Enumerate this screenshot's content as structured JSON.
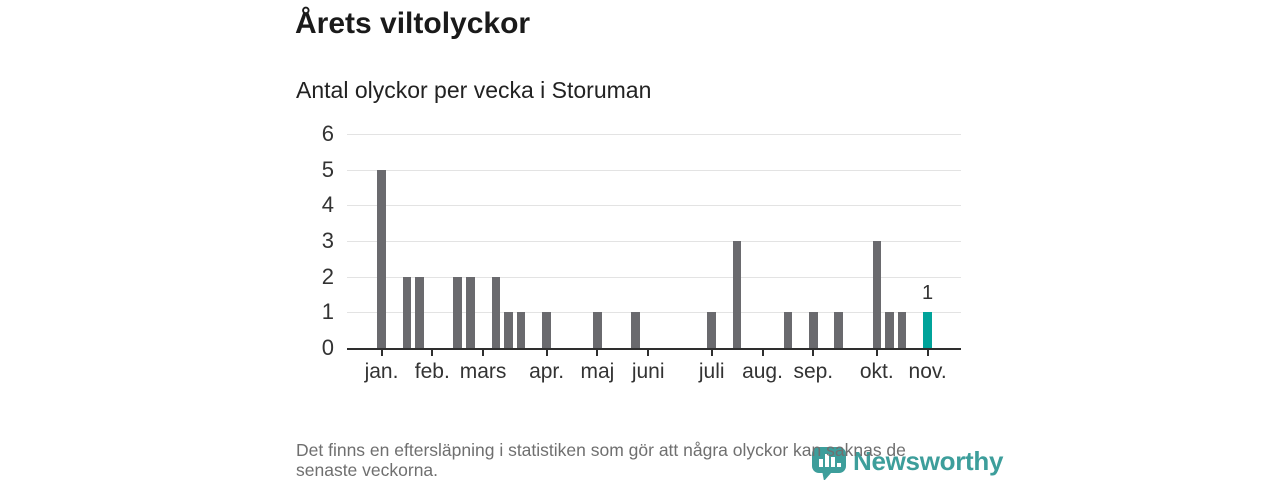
{
  "page": {
    "title": "Årets viltolyckor",
    "subtitle": "Antal olyckor per vecka i Storuman"
  },
  "chart_data": {
    "type": "bar",
    "title": "Årets viltolyckor",
    "subtitle": "Antal olyckor per vecka i Storuman",
    "x_axis": "weeks of the year, one bar per week, months jan.-nov.",
    "ylabel": "",
    "ylim": [
      0,
      6
    ],
    "yticks": [
      0,
      1,
      2,
      3,
      4,
      5,
      6
    ],
    "grid": "horizontal",
    "legend": "none",
    "month_ticks": [
      {
        "label": "jan.",
        "week": 0
      },
      {
        "label": "feb.",
        "week": 4
      },
      {
        "label": "mars",
        "week": 8
      },
      {
        "label": "apr.",
        "week": 13
      },
      {
        "label": "maj",
        "week": 17
      },
      {
        "label": "juni",
        "week": 21
      },
      {
        "label": "juli",
        "week": 26
      },
      {
        "label": "aug.",
        "week": 30
      },
      {
        "label": "sep.",
        "week": 34
      },
      {
        "label": "okt.",
        "week": 39
      },
      {
        "label": "nov.",
        "week": 43
      }
    ],
    "bars": [
      {
        "week": 0,
        "value": 5
      },
      {
        "week": 2,
        "value": 2
      },
      {
        "week": 3,
        "value": 2
      },
      {
        "week": 6,
        "value": 2
      },
      {
        "week": 7,
        "value": 2
      },
      {
        "week": 9,
        "value": 2
      },
      {
        "week": 10,
        "value": 1
      },
      {
        "week": 11,
        "value": 1
      },
      {
        "week": 13,
        "value": 1
      },
      {
        "week": 17,
        "value": 1
      },
      {
        "week": 20,
        "value": 1
      },
      {
        "week": 26,
        "value": 1
      },
      {
        "week": 28,
        "value": 3
      },
      {
        "week": 32,
        "value": 1
      },
      {
        "week": 34,
        "value": 1
      },
      {
        "week": 36,
        "value": 1
      },
      {
        "week": 39,
        "value": 3
      },
      {
        "week": 40,
        "value": 1
      },
      {
        "week": 41,
        "value": 1
      },
      {
        "week": 43,
        "value": 1,
        "highlight": true,
        "data_label": "1"
      }
    ],
    "colors": {
      "bar": "#6a6a6e",
      "highlight": "#00a39a",
      "grid": "#e3e3e3",
      "axis": "#2e2e2e",
      "axis_text": "#333333"
    }
  },
  "footer": {
    "note_lines": [
      "Det finns en eftersläpning i statistiken som gör att några olyckor kan saknas de",
      "senaste veckorna."
    ],
    "logo_text": "Newsworthy",
    "logo_color": "#3d9e9b"
  }
}
